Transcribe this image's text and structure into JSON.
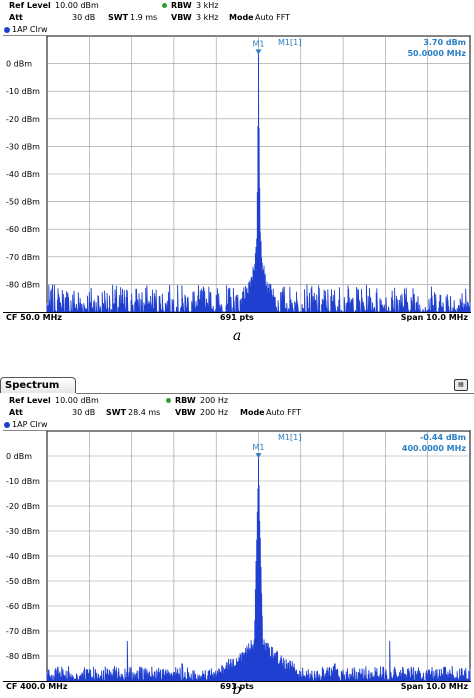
{
  "figures": [
    {
      "caption": "a",
      "tab_label": "",
      "params": {
        "ref_level_label": "Ref Level",
        "ref_level": "10.00 dBm",
        "att_label": "Att",
        "att": "30 dB",
        "swt_label": "SWT",
        "swt": "1.9 ms",
        "rbw_label": "RBW",
        "rbw": "3 kHz",
        "vbw_label": "VBW",
        "vbw": "3 kHz",
        "mode_label": "Mode",
        "mode": "Auto FFT"
      },
      "trace_label": "1AP Clrw",
      "marker": {
        "id": "M1",
        "title": "M1[1]",
        "level": "3.70 dBm",
        "frequency": "50.0000 MHz"
      },
      "footer": {
        "cf": "CF 50.0 MHz",
        "points": "691 pts",
        "span": "Span 10.0 MHz"
      }
    },
    {
      "caption": "b",
      "tab_label": "Spectrum",
      "params": {
        "ref_level_label": "Ref Level",
        "ref_level": "10.00 dBm",
        "att_label": "Att",
        "att": "30 dB",
        "swt_label": "SWT",
        "swt": "28.4 ms",
        "rbw_label": "RBW",
        "rbw": "200 Hz",
        "vbw_label": "VBW",
        "vbw": "200 Hz",
        "mode_label": "Mode",
        "mode": "Auto FFT"
      },
      "trace_label": "1AP Clrw",
      "marker": {
        "id": "M1",
        "title": "M1[1]",
        "level": "-0.44 dBm",
        "frequency": "400.0000 MHz"
      },
      "footer": {
        "cf": "CF 400.0 MHz",
        "points": "691 pts",
        "span": "Span 10.0 MHz"
      }
    }
  ],
  "chart_data": [
    {
      "type": "line",
      "title": "",
      "xlabel": "",
      "ylabel": "",
      "xlim": [
        45.0,
        55.0
      ],
      "ylim": [
        -90,
        10
      ],
      "yticks": [
        0,
        -10,
        -20,
        -30,
        -40,
        -50,
        -60,
        -70,
        -80
      ],
      "ytick_labels": [
        "0 dBm",
        "-10 dBm",
        "-20 dBm",
        "-30 dBm",
        "-40 dBm",
        "-50 dBm",
        "-60 dBm",
        "-70 dBm",
        "-80 dBm"
      ],
      "grid": true,
      "points": 691,
      "series": [
        {
          "color": "#1f3fd0",
          "noise_floor_dbm": -84,
          "noise_range_dbm": [
            -92,
            -80
          ],
          "x": [
            45.0,
            49.3,
            49.6,
            49.8,
            49.9,
            49.96,
            50.0,
            50.04,
            50.1,
            50.2,
            50.4,
            50.7,
            55.0
          ],
          "y": [
            -85,
            -84,
            -82,
            -78,
            -70,
            -60,
            3.7,
            -60,
            -70,
            -78,
            -82,
            -84,
            -85
          ]
        }
      ],
      "marker": {
        "x": 50.0,
        "y": 3.7
      }
    },
    {
      "type": "line",
      "title": "",
      "xlabel": "",
      "ylabel": "",
      "xlim": [
        395.0,
        405.0
      ],
      "ylim": [
        -90,
        10
      ],
      "yticks": [
        0,
        -10,
        -20,
        -30,
        -40,
        -50,
        -60,
        -70,
        -80
      ],
      "ytick_labels": [
        "0 dBm",
        "-10 dBm",
        "-20 dBm",
        "-30 dBm",
        "-40 dBm",
        "-50 dBm",
        "-60 dBm",
        "-70 dBm",
        "-80 dBm"
      ],
      "grid": true,
      "points": 691,
      "series": [
        {
          "color": "#1f3fd0",
          "noise_floor_dbm": -88,
          "noise_range_dbm": [
            -90,
            -84
          ],
          "x": [
            395.0,
            398.5,
            399.0,
            399.4,
            399.7,
            399.9,
            400.0,
            400.1,
            400.3,
            400.6,
            401.0,
            401.5,
            405.0
          ],
          "y": [
            -89,
            -87,
            -84,
            -80,
            -76,
            -72,
            -0.44,
            -72,
            -76,
            -80,
            -84,
            -87,
            -89
          ]
        }
      ],
      "spurs": [
        {
          "x": 396.9,
          "y": -74
        },
        {
          "x": 398.2,
          "y": -83
        },
        {
          "x": 401.8,
          "y": -83
        },
        {
          "x": 403.1,
          "y": -74
        }
      ],
      "marker": {
        "x": 400.0,
        "y": -0.44
      }
    }
  ]
}
